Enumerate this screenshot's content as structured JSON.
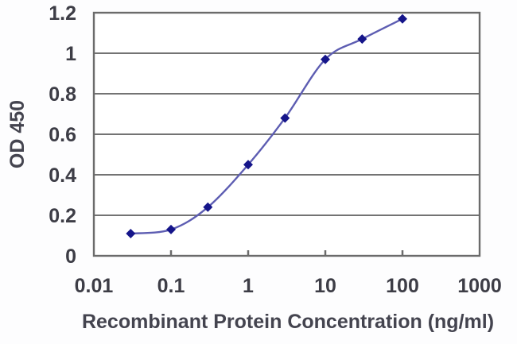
{
  "chart_data": {
    "type": "line",
    "subtype": "scatter-with-smooth-line",
    "title": "",
    "xlabel": "Recombinant Protein Concentration (ng/ml)",
    "ylabel": "OD 450",
    "x_scale": "log",
    "xlim": [
      0.01,
      1000
    ],
    "ylim": [
      0,
      1.2
    ],
    "x": [
      0.03,
      0.1,
      0.3,
      1,
      3,
      10,
      30,
      100
    ],
    "y": [
      0.11,
      0.13,
      0.24,
      0.45,
      0.68,
      0.97,
      1.07,
      1.17
    ],
    "series_name": "",
    "x_ticks": [
      "0.01",
      "0.1",
      "1",
      "10",
      "100",
      "1000"
    ],
    "x_tick_values": [
      0.01,
      0.1,
      1,
      10,
      100,
      1000
    ],
    "y_ticks": [
      "0",
      "0.2",
      "0.4",
      "0.6",
      "0.8",
      "1",
      "1.2"
    ],
    "y_tick_values": [
      0,
      0.2,
      0.4,
      0.6,
      0.8,
      1,
      1.2
    ],
    "grid": "horizontal-only",
    "legend": "none",
    "marker": "diamond",
    "colors": {
      "line": "#5d5db2",
      "marker": "#15158a",
      "grid": "#737373",
      "axis_border": "#6b6b6b",
      "tick_text": "#3d3d46",
      "title_text": "#44444f",
      "plot_background": "#ffffff",
      "page_background": "#fdfdfe"
    }
  }
}
